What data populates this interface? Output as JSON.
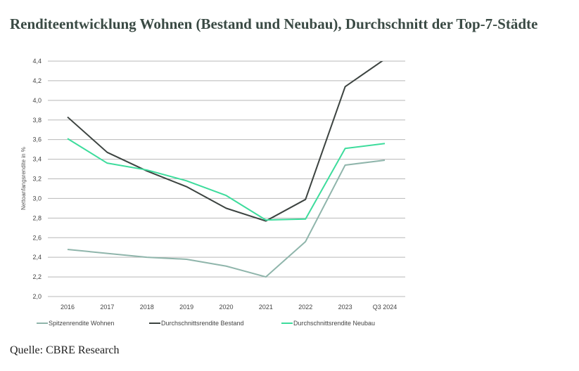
{
  "title": "Renditeentwicklung Wohnen (Bestand und Neubau), Durchschnitt der Top-7-Städte",
  "source": "Quelle: CBRE Research",
  "chart_data": {
    "type": "line",
    "categories": [
      "2016",
      "2017",
      "2018",
      "2019",
      "2020",
      "2021",
      "2022",
      "2023",
      "Q3 2024"
    ],
    "ylabel": "Nettoanfangsrendite in %",
    "ylim": [
      2.0,
      4.4
    ],
    "yticks": [
      "2,0",
      "2,2",
      "2,4",
      "2,6",
      "2,8",
      "3,0",
      "3,2",
      "3,4",
      "3,6",
      "3,8",
      "4,0",
      "4,2",
      "4,4"
    ],
    "grid": true,
    "legend_position": "bottom",
    "series": [
      {
        "name": "Spitzenrendite Wohnen",
        "color": "#8fb5ab",
        "values": [
          2.48,
          2.44,
          2.4,
          2.38,
          2.31,
          2.2,
          2.56,
          3.34,
          3.39
        ]
      },
      {
        "name": "Durchschnittsrendite Bestand",
        "color": "#3c4340",
        "values": [
          3.83,
          3.47,
          3.28,
          3.12,
          2.9,
          2.77,
          2.99,
          4.14,
          4.42
        ]
      },
      {
        "name": "Durchschnittsrendite Neubau",
        "color": "#3ddc9c",
        "values": [
          3.61,
          3.36,
          3.29,
          3.18,
          3.03,
          2.78,
          2.79,
          3.51,
          3.56
        ]
      }
    ]
  }
}
